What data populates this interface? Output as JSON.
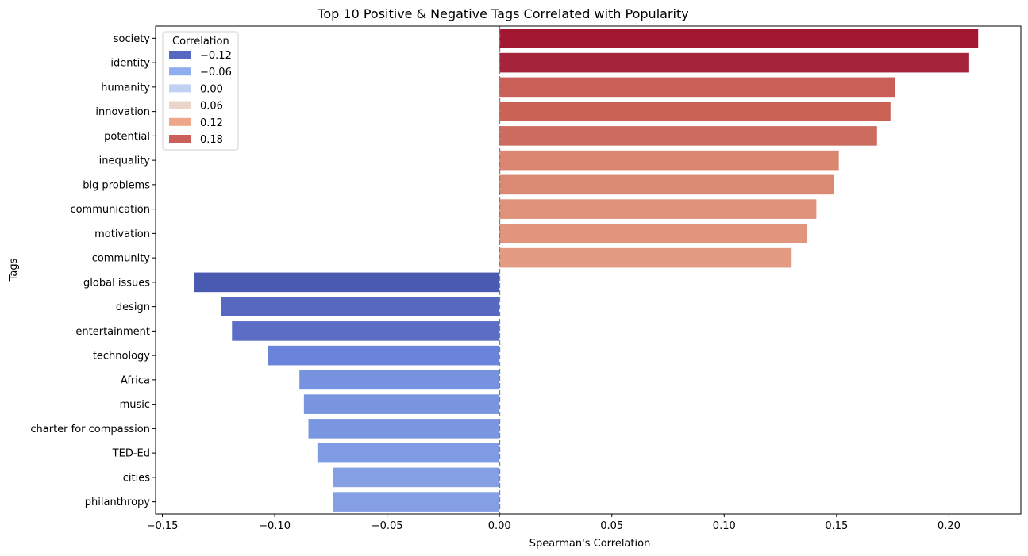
{
  "chart_data": {
    "type": "bar",
    "orientation": "horizontal",
    "title": "Top 10 Positive & Negative Tags Correlated with Popularity",
    "xlabel": "Spearman's Correlation",
    "ylabel": "Tags",
    "xlim": [
      -0.153,
      0.232
    ],
    "xticks": [
      -0.15,
      -0.1,
      -0.05,
      0.0,
      0.05,
      0.1,
      0.15,
      0.2
    ],
    "xtick_labels": [
      "−0.15",
      "−0.10",
      "−0.05",
      "0.00",
      "0.05",
      "0.10",
      "0.15",
      "0.20"
    ],
    "reference_line": {
      "x": 0,
      "style": "dashed",
      "color": "#808080"
    },
    "grid": false,
    "categories": [
      "society",
      "identity",
      "humanity",
      "innovation",
      "potential",
      "inequality",
      "big problems",
      "communication",
      "motivation",
      "community",
      "global issues",
      "design",
      "entertainment",
      "technology",
      "Africa",
      "music",
      "charter for compassion",
      "TED-Ed",
      "cities",
      "philanthropy"
    ],
    "values": [
      0.213,
      0.209,
      0.176,
      0.174,
      0.168,
      0.151,
      0.149,
      0.141,
      0.137,
      0.13,
      -0.136,
      -0.124,
      -0.119,
      -0.103,
      -0.089,
      -0.087,
      -0.085,
      -0.081,
      -0.074,
      -0.074
    ],
    "colors": [
      "#a11731",
      "#a5233b",
      "#c95f57",
      "#ca6356",
      "#cc6c5e",
      "#da8671",
      "#da8972",
      "#df9179",
      "#e0957c",
      "#e39b83",
      "#4a5ab1",
      "#5768c0",
      "#5b6dc4",
      "#6b84db",
      "#7793df",
      "#7995e0",
      "#7b96e1",
      "#7e9be4",
      "#859fe5",
      "#859fe5"
    ],
    "legend": {
      "title": "Correlation",
      "placement": "upper-left",
      "entries": [
        {
          "label": "−0.12",
          "color": "#5768c0"
        },
        {
          "label": "−0.06",
          "color": "#8eaeef"
        },
        {
          "label": "0.00",
          "color": "#c1d1f2"
        },
        {
          "label": "0.06",
          "color": "#ead5ca"
        },
        {
          "label": "0.12",
          "color": "#eea68a"
        },
        {
          "label": "0.18",
          "color": "#c9605b"
        }
      ]
    }
  }
}
